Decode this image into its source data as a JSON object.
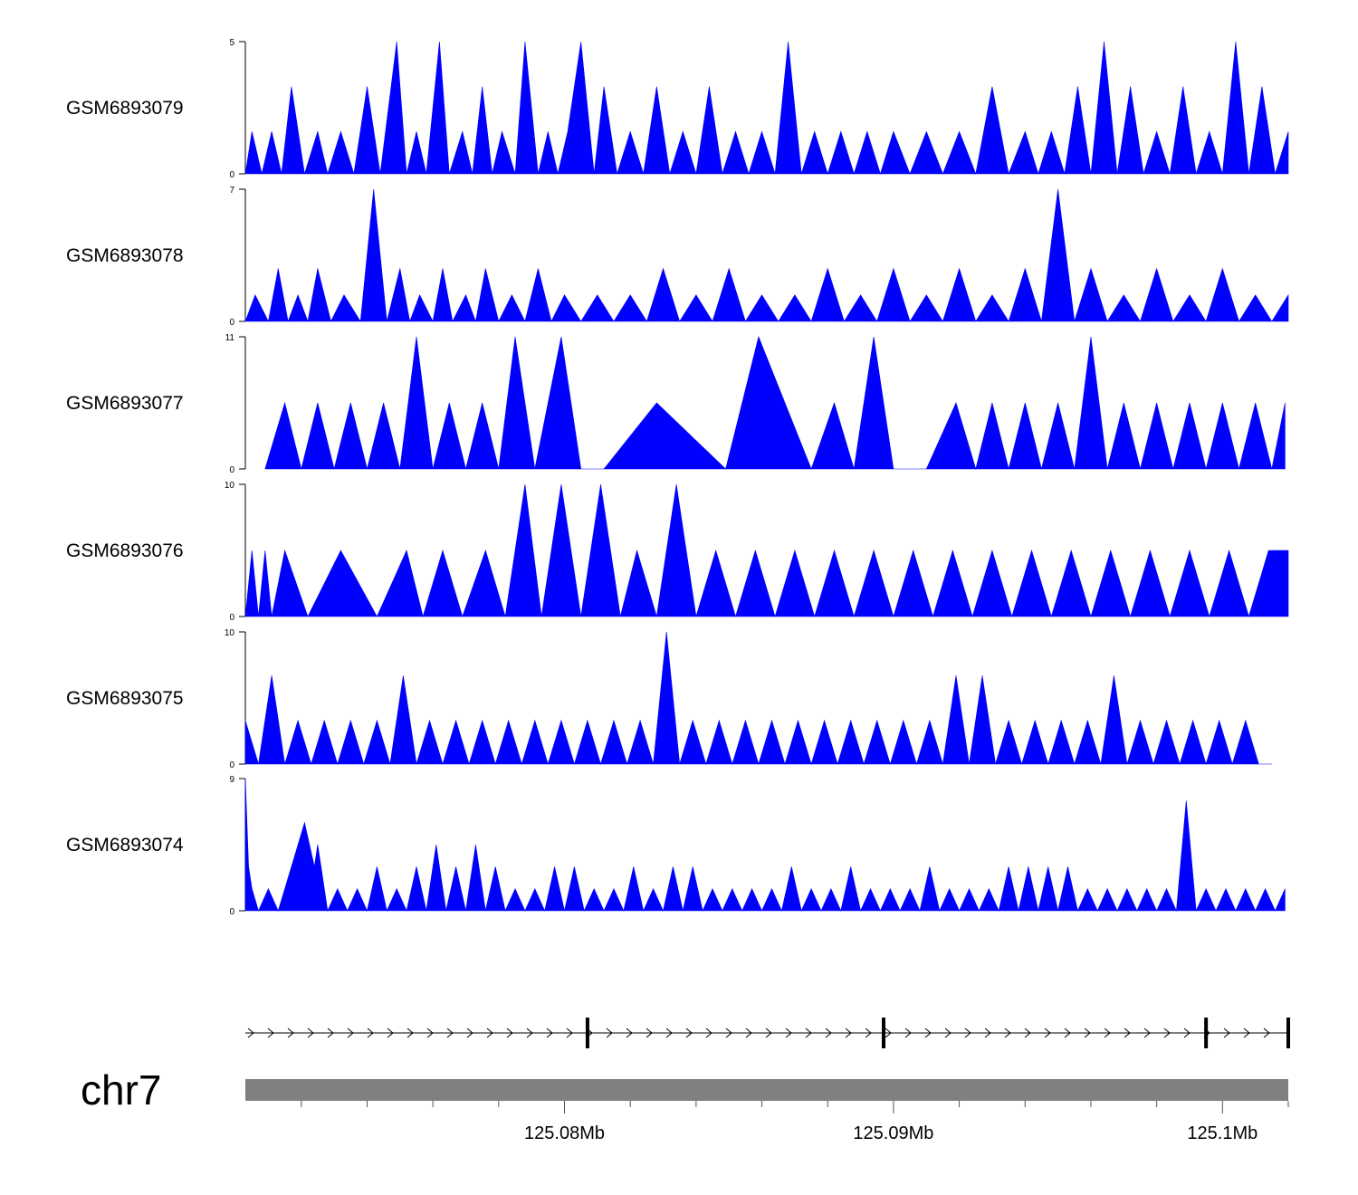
{
  "chart_data": {
    "type": "area",
    "chromosome": "chr7",
    "x_unit": "Mb",
    "xlim": [
      125.0703,
      125.102
    ],
    "x_ticks": [
      {
        "value": 125.08,
        "label": "125.08Mb"
      },
      {
        "value": 125.09,
        "label": "125.09Mb"
      },
      {
        "value": 125.1,
        "label": "125.1Mb"
      }
    ],
    "x_minor_ticks": [
      125.072,
      125.074,
      125.076,
      125.078,
      125.082,
      125.084,
      125.086,
      125.088,
      125.092,
      125.094,
      125.096,
      125.098,
      125.102
    ],
    "gene": {
      "strand": "+",
      "start": 125.0703,
      "end": 125.102,
      "exon_marks": [
        125.0807,
        125.0897,
        125.0995,
        125.102
      ]
    },
    "tracks": [
      {
        "name": "GSM6893079",
        "ymax": 5,
        "ytick_labels": [
          "0",
          "5"
        ],
        "x": [
          125.0703,
          125.0705,
          125.0708,
          125.0711,
          125.0714,
          125.0717,
          125.0721,
          125.0725,
          125.0728,
          125.0732,
          125.0736,
          125.074,
          125.0744,
          125.0749,
          125.0752,
          125.0755,
          125.0758,
          125.0762,
          125.0765,
          125.0769,
          125.0772,
          125.0775,
          125.0778,
          125.0781,
          125.0785,
          125.0788,
          125.0792,
          125.0795,
          125.0798,
          125.0801,
          125.0805,
          125.0809,
          125.0812,
          125.0816,
          125.082,
          125.0824,
          125.0828,
          125.0832,
          125.0836,
          125.084,
          125.0844,
          125.0848,
          125.0852,
          125.0856,
          125.086,
          125.0864,
          125.0868,
          125.0872,
          125.0876,
          125.088,
          125.0884,
          125.0888,
          125.0892,
          125.0896,
          125.09,
          125.0905,
          125.091,
          125.0915,
          125.092,
          125.0925,
          125.093,
          125.0935,
          125.094,
          125.0944,
          125.0948,
          125.0952,
          125.0956,
          125.096,
          125.0964,
          125.0968,
          125.0972,
          125.0976,
          125.098,
          125.0984,
          125.0988,
          125.0992,
          125.0996,
          125.1,
          125.1004,
          125.1008,
          125.1012,
          125.1016,
          125.102
        ],
        "values": [
          0,
          1.6,
          0,
          1.6,
          0,
          3.3,
          0,
          1.6,
          0,
          1.6,
          0,
          3.3,
          0,
          5,
          0,
          1.6,
          0,
          5,
          0,
          1.6,
          0,
          3.3,
          0,
          1.6,
          0,
          5,
          0,
          1.6,
          0,
          1.6,
          5,
          0,
          3.3,
          0,
          1.6,
          0,
          3.3,
          0,
          1.6,
          0,
          3.3,
          0,
          1.6,
          0,
          1.6,
          0,
          5,
          0,
          1.6,
          0,
          1.6,
          0,
          1.6,
          0,
          1.6,
          0,
          1.6,
          0,
          1.6,
          0,
          3.3,
          0,
          1.6,
          0,
          1.6,
          0,
          3.3,
          0,
          5,
          0,
          3.3,
          0,
          1.6,
          0,
          3.3,
          0,
          1.6,
          0,
          5,
          0,
          3.3,
          0,
          1.6
        ]
      },
      {
        "name": "GSM6893078",
        "ymax": 7,
        "ytick_labels": [
          "0",
          "7"
        ],
        "x": [
          125.0703,
          125.0706,
          125.071,
          125.0713,
          125.0716,
          125.0719,
          125.0722,
          125.0725,
          125.0729,
          125.0733,
          125.0738,
          125.0742,
          125.0746,
          125.075,
          125.0753,
          125.0756,
          125.076,
          125.0763,
          125.0766,
          125.077,
          125.0773,
          125.0776,
          125.078,
          125.0784,
          125.0788,
          125.0792,
          125.0796,
          125.08,
          125.0805,
          125.081,
          125.0815,
          125.082,
          125.0825,
          125.083,
          125.0835,
          125.084,
          125.0845,
          125.085,
          125.0855,
          125.086,
          125.0865,
          125.087,
          125.0875,
          125.088,
          125.0885,
          125.089,
          125.0895,
          125.09,
          125.0905,
          125.091,
          125.0915,
          125.092,
          125.0925,
          125.093,
          125.0935,
          125.094,
          125.0945,
          125.095,
          125.0955,
          125.096,
          125.0965,
          125.097,
          125.0975,
          125.098,
          125.0985,
          125.099,
          125.0995,
          125.1,
          125.1005,
          125.101,
          125.1015,
          125.102
        ],
        "values": [
          0,
          1.4,
          0,
          2.8,
          0,
          1.4,
          0,
          2.8,
          0,
          1.4,
          0,
          7,
          0,
          2.8,
          0,
          1.4,
          0,
          2.8,
          0,
          1.4,
          0,
          2.8,
          0,
          1.4,
          0,
          2.8,
          0,
          1.4,
          0,
          1.4,
          0,
          1.4,
          0,
          2.8,
          0,
          1.4,
          0,
          2.8,
          0,
          1.4,
          0,
          1.4,
          0,
          2.8,
          0,
          1.4,
          0,
          2.8,
          0,
          1.4,
          0,
          2.8,
          0,
          1.4,
          0,
          2.8,
          0,
          7,
          0,
          2.8,
          0,
          1.4,
          0,
          2.8,
          0,
          1.4,
          0,
          2.8,
          0,
          1.4,
          0,
          1.4
        ]
      },
      {
        "name": "GSM6893077",
        "ymax": 11,
        "ytick_labels": [
          "0",
          "11"
        ],
        "x": [
          125.0709,
          125.0715,
          125.072,
          125.0725,
          125.073,
          125.0735,
          125.074,
          125.0745,
          125.075,
          125.0755,
          125.076,
          125.0765,
          125.077,
          125.0775,
          125.078,
          125.0785,
          125.0791,
          125.0799,
          125.0805,
          125.0812,
          125.0828,
          125.0849,
          125.0859,
          125.0875,
          125.0882,
          125.0888,
          125.0894,
          125.09,
          125.091,
          125.0919,
          125.0925,
          125.093,
          125.0935,
          125.094,
          125.0945,
          125.095,
          125.0955,
          125.096,
          125.0965,
          125.097,
          125.0975,
          125.098,
          125.0985,
          125.099,
          125.0995,
          125.1,
          125.1005,
          125.101,
          125.1015,
          125.1019
        ],
        "values": [
          0,
          5.5,
          0,
          5.5,
          0,
          5.5,
          0,
          5.5,
          0,
          11,
          0,
          5.5,
          0,
          5.5,
          0,
          11,
          0,
          11,
          0,
          0,
          5.5,
          0,
          11,
          0,
          5.5,
          0,
          11,
          0,
          0,
          5.5,
          0,
          5.5,
          0,
          5.5,
          0,
          5.5,
          0,
          11,
          0,
          5.5,
          0,
          5.5,
          0,
          5.5,
          0,
          5.5,
          0,
          5.5,
          0,
          5.5
        ]
      },
      {
        "name": "GSM6893076",
        "ymax": 10,
        "ytick_labels": [
          "0",
          "10"
        ],
        "x": [
          125.0703,
          125.0705,
          125.0707,
          125.0709,
          125.0711,
          125.0715,
          125.0722,
          125.0732,
          125.0743,
          125.0752,
          125.0757,
          125.0763,
          125.0769,
          125.0776,
          125.0782,
          125.0788,
          125.0793,
          125.0799,
          125.0805,
          125.0811,
          125.0817,
          125.0822,
          125.0828,
          125.0834,
          125.084,
          125.0846,
          125.0852,
          125.0858,
          125.0864,
          125.087,
          125.0876,
          125.0882,
          125.0888,
          125.0894,
          125.09,
          125.0906,
          125.0912,
          125.0918,
          125.0924,
          125.093,
          125.0936,
          125.0942,
          125.0948,
          125.0954,
          125.096,
          125.0966,
          125.0972,
          125.0978,
          125.0984,
          125.099,
          125.0996,
          125.1002,
          125.1008,
          125.1014,
          125.102
        ],
        "values": [
          0,
          5,
          0,
          5,
          0,
          5,
          0,
          5,
          0,
          5,
          0,
          5,
          0,
          5,
          0,
          10,
          0,
          10,
          0,
          10,
          0,
          5,
          0,
          10,
          0,
          5,
          0,
          5,
          0,
          5,
          0,
          5,
          0,
          5,
          0,
          5,
          0,
          5,
          0,
          5,
          0,
          5,
          0,
          5,
          0,
          5,
          0,
          5,
          0,
          5,
          0,
          5,
          0,
          5,
          5
        ]
      },
      {
        "name": "GSM6893075",
        "ymax": 10,
        "ytick_labels": [
          "0",
          "10"
        ],
        "x": [
          125.0703,
          125.0707,
          125.0711,
          125.0715,
          125.0719,
          125.0723,
          125.0727,
          125.0731,
          125.0735,
          125.0739,
          125.0743,
          125.0747,
          125.0751,
          125.0755,
          125.0759,
          125.0763,
          125.0767,
          125.0771,
          125.0775,
          125.0779,
          125.0783,
          125.0787,
          125.0791,
          125.0795,
          125.0799,
          125.0803,
          125.0807,
          125.0811,
          125.0815,
          125.0819,
          125.0823,
          125.0827,
          125.0831,
          125.0835,
          125.0839,
          125.0843,
          125.0847,
          125.0851,
          125.0855,
          125.0859,
          125.0863,
          125.0867,
          125.0871,
          125.0875,
          125.0879,
          125.0883,
          125.0887,
          125.0891,
          125.0895,
          125.0899,
          125.0903,
          125.0907,
          125.0911,
          125.0915,
          125.0919,
          125.0923,
          125.0927,
          125.0931,
          125.0935,
          125.0939,
          125.0943,
          125.0947,
          125.0951,
          125.0955,
          125.0959,
          125.0963,
          125.0967,
          125.0971,
          125.0975,
          125.0979,
          125.0983,
          125.0987,
          125.0991,
          125.0995,
          125.0999,
          125.1003,
          125.1007,
          125.1011,
          125.1015
        ],
        "values": [
          3.3,
          0,
          6.7,
          0,
          3.3,
          0,
          3.3,
          0,
          3.3,
          0,
          3.3,
          0,
          6.7,
          0,
          3.3,
          0,
          3.3,
          0,
          3.3,
          0,
          3.3,
          0,
          3.3,
          0,
          3.3,
          0,
          3.3,
          0,
          3.3,
          0,
          3.3,
          0,
          10,
          0,
          3.3,
          0,
          3.3,
          0,
          3.3,
          0,
          3.3,
          0,
          3.3,
          0,
          3.3,
          0,
          3.3,
          0,
          3.3,
          0,
          3.3,
          0,
          3.3,
          0,
          6.7,
          0,
          6.7,
          0,
          3.3,
          0,
          3.3,
          0,
          3.3,
          0,
          3.3,
          0,
          6.7,
          0,
          3.3,
          0,
          3.3,
          0,
          3.3,
          0,
          3.3,
          0,
          3.3,
          0,
          0
        ]
      },
      {
        "name": "GSM6893074",
        "ymax": 9,
        "ytick_labels": [
          "0",
          "9"
        ],
        "x": [
          125.0703,
          125.0704,
          125.0705,
          125.0707,
          125.071,
          125.0713,
          125.0717,
          125.0721,
          125.0724,
          125.0725,
          125.0726,
          125.0728,
          125.0731,
          125.0734,
          125.0737,
          125.074,
          125.0743,
          125.0746,
          125.0749,
          125.0752,
          125.0755,
          125.0758,
          125.0761,
          125.0764,
          125.0767,
          125.077,
          125.0773,
          125.0776,
          125.0779,
          125.0782,
          125.0785,
          125.0788,
          125.0791,
          125.0794,
          125.0797,
          125.08,
          125.0803,
          125.0806,
          125.0809,
          125.0812,
          125.0815,
          125.0818,
          125.0821,
          125.0824,
          125.0827,
          125.083,
          125.0833,
          125.0836,
          125.0839,
          125.0842,
          125.0845,
          125.0848,
          125.0851,
          125.0854,
          125.0857,
          125.086,
          125.0863,
          125.0866,
          125.0869,
          125.0872,
          125.0875,
          125.0878,
          125.0881,
          125.0884,
          125.0887,
          125.089,
          125.0893,
          125.0896,
          125.0899,
          125.0902,
          125.0905,
          125.0908,
          125.0911,
          125.0914,
          125.0917,
          125.092,
          125.0923,
          125.0926,
          125.0929,
          125.0932,
          125.0935,
          125.0938,
          125.0941,
          125.0944,
          125.0947,
          125.095,
          125.0953,
          125.0956,
          125.0959,
          125.0962,
          125.0965,
          125.0968,
          125.0971,
          125.0974,
          125.0977,
          125.098,
          125.0983,
          125.0986,
          125.0989,
          125.0992,
          125.0995,
          125.0998,
          125.1001,
          125.1004,
          125.1007,
          125.101,
          125.1013,
          125.1016,
          125.1019
        ],
        "values": [
          9,
          3,
          1.5,
          0,
          1.5,
          0,
          3,
          6,
          3,
          4.5,
          3,
          0,
          1.5,
          0,
          1.5,
          0,
          3,
          0,
          1.5,
          0,
          3,
          0,
          4.5,
          0,
          3,
          0,
          4.5,
          0,
          3,
          0,
          1.5,
          0,
          1.5,
          0,
          3,
          0,
          3,
          0,
          1.5,
          0,
          1.5,
          0,
          3,
          0,
          1.5,
          0,
          3,
          0,
          3,
          0,
          1.5,
          0,
          1.5,
          0,
          1.5,
          0,
          1.5,
          0,
          3,
          0,
          1.5,
          0,
          1.5,
          0,
          3,
          0,
          1.5,
          0,
          1.5,
          0,
          1.5,
          0,
          3,
          0,
          1.5,
          0,
          1.5,
          0,
          1.5,
          0,
          3,
          0,
          3,
          0,
          3,
          0,
          3,
          0,
          1.5,
          0,
          1.5,
          0,
          1.5,
          0,
          1.5,
          0,
          1.5,
          0,
          7.5,
          0,
          1.5,
          0,
          1.5,
          0,
          1.5,
          0,
          1.5,
          0,
          1.5
        ]
      }
    ]
  }
}
